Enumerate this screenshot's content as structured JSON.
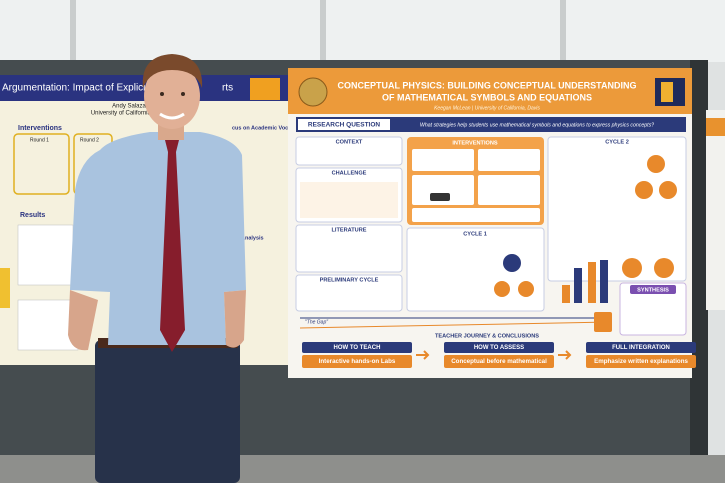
{
  "left_poster": {
    "title": "Argumentation: Impact of Explicit Ins",
    "title_tail": "rts",
    "author": "Andy Salazar",
    "affiliation": "University of California, Davis",
    "interventions": "Interventions",
    "round_1": "Round 1",
    "round_2": "Round 2",
    "results": "Results",
    "focus": "cus on Academic Vocabulary",
    "analysis": "ir Analysis"
  },
  "right_poster": {
    "title_line_1": "CONCEPTUAL PHYSICS: BUILDING CONCEPTUAL UNDERSTANDING",
    "title_line_2": "OF MATHEMATICAL SYMBOLS AND EQUATIONS",
    "author": "Keegan McLean | University of California, Davis",
    "research_question_label": "RESEARCH QUESTION",
    "research_question": "What strategies help students use mathematical symbols and equations to express physics concepts?",
    "context": "CONTEXT",
    "challenge": "CHALLENGE",
    "literature": "LITERATURE",
    "preliminary_cycle": "PRELIMINARY CYCLE",
    "interventions": "INTERVENTIONS",
    "cycle_1": "CYCLE 1",
    "cycle_2": "CYCLE 2",
    "synthesis": "SYNTHESIS",
    "gap": "\"The Gap\"",
    "conclusions": "TEACHER JOURNEY & CONCLUSIONS",
    "steps": [
      {
        "label": "HOW TO TEACH",
        "text": "Interactive hands-on Labs"
      },
      {
        "label": "HOW TO ASSESS",
        "text": "Conceptual before mathematical"
      },
      {
        "label": "FULL INTEGRATION",
        "text": "Emphasize written explanations"
      }
    ]
  }
}
